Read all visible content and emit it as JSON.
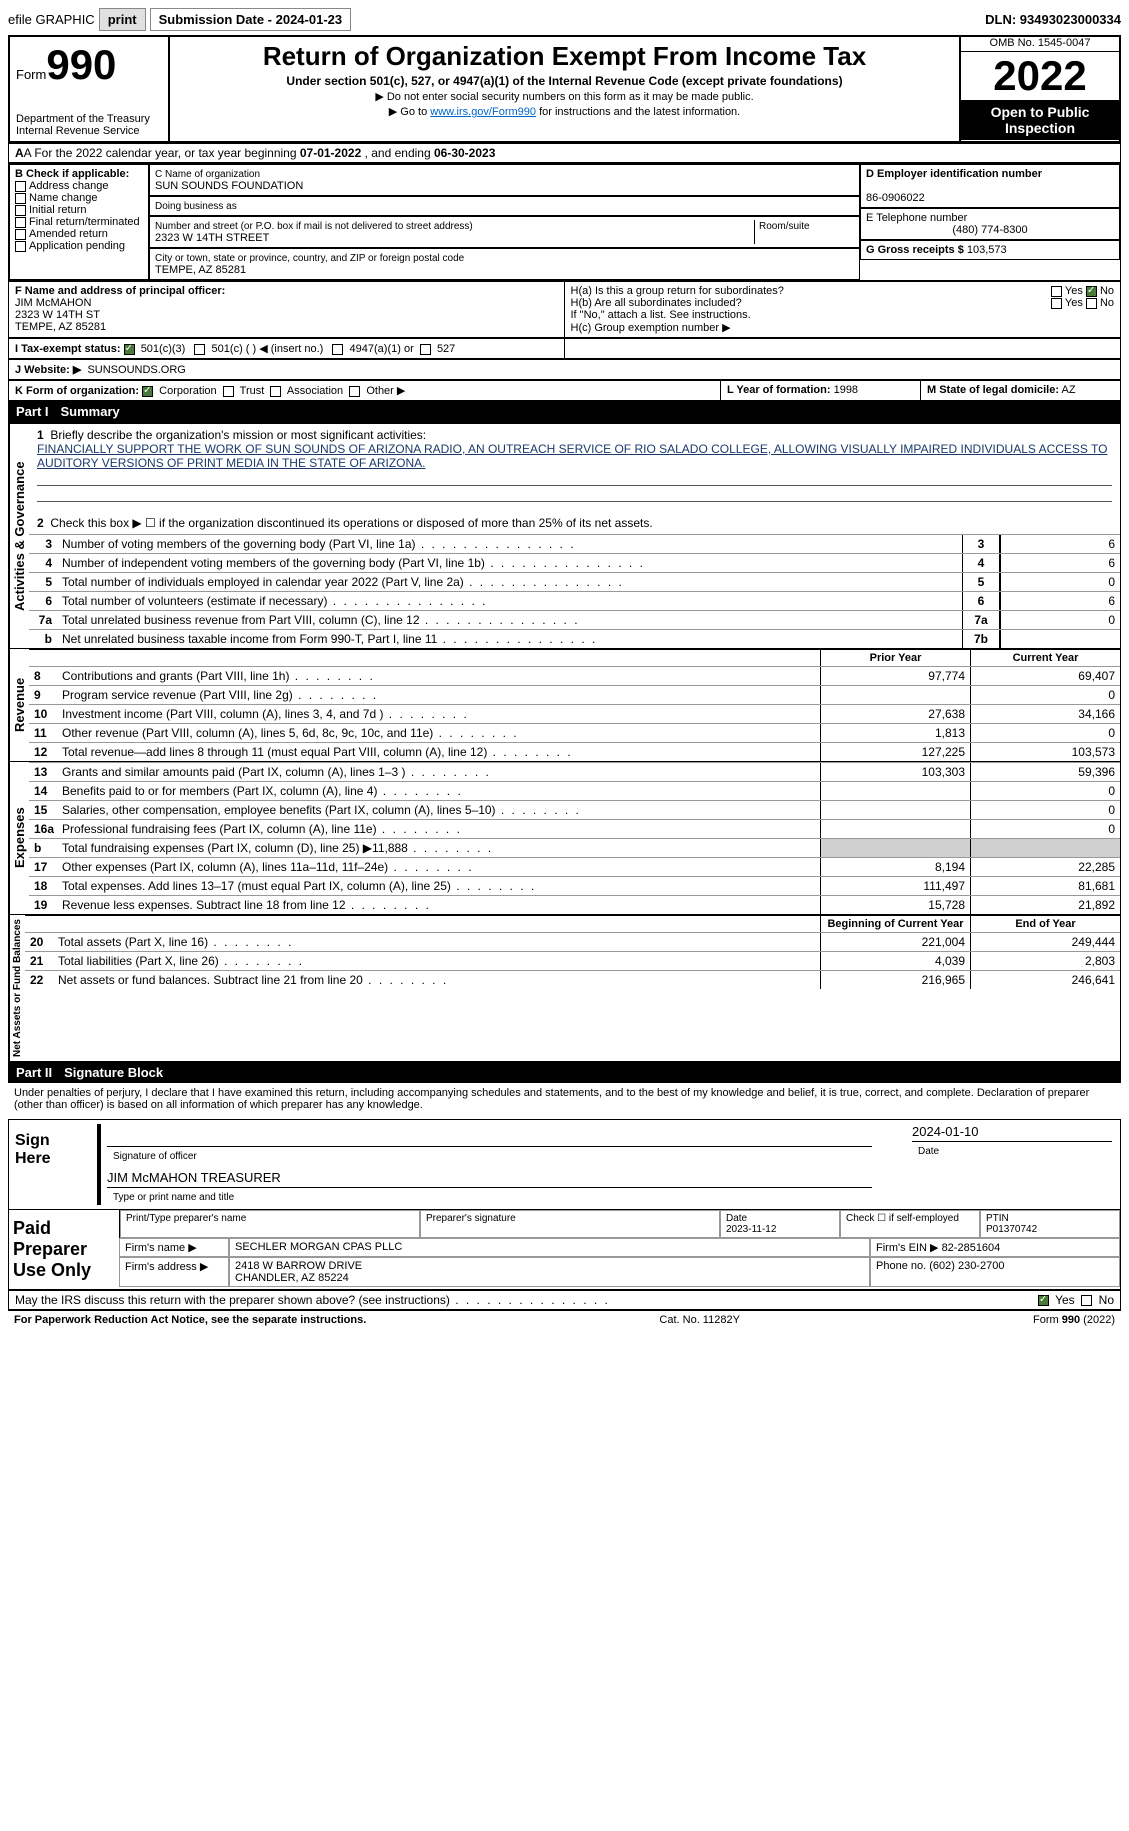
{
  "topbar": {
    "efile": "efile GRAPHIC",
    "print": "print",
    "submission": "Submission Date - 2024-01-23",
    "dln": "DLN: 93493023000334"
  },
  "header": {
    "form_label": "Form",
    "form_num": "990",
    "dept": "Department of the Treasury\nInternal Revenue Service",
    "title": "Return of Organization Exempt From Income Tax",
    "subtitle": "Under section 501(c), 527, or 4947(a)(1) of the Internal Revenue Code (except private foundations)",
    "note1": "▶ Do not enter social security numbers on this form as it may be made public.",
    "note2_pre": "▶ Go to ",
    "note2_link": "www.irs.gov/Form990",
    "note2_post": " for instructions and the latest information.",
    "omb": "OMB No. 1545-0047",
    "year": "2022",
    "open": "Open to Public Inspection"
  },
  "row_a": {
    "text_pre": "A For the 2022 calendar year, or tax year beginning ",
    "begin": "07-01-2022",
    "text_mid": " , and ending ",
    "end": "06-30-2023"
  },
  "section_b": {
    "label": "B Check if applicable:",
    "opts": [
      "Address change",
      "Name change",
      "Initial return",
      "Final return/terminated",
      "Amended return",
      "Application pending"
    ]
  },
  "section_c": {
    "name_lbl": "C Name of organization",
    "name": "SUN SOUNDS FOUNDATION",
    "dba_lbl": "Doing business as",
    "dba": "",
    "addr_lbl": "Number and street (or P.O. box if mail is not delivered to street address)",
    "room_lbl": "Room/suite",
    "addr": "2323 W 14TH STREET",
    "city_lbl": "City or town, state or province, country, and ZIP or foreign postal code",
    "city": "TEMPE, AZ  85281"
  },
  "section_d": {
    "label": "D Employer identification number",
    "ein": "86-0906022"
  },
  "section_e": {
    "label": "E Telephone number",
    "phone": "(480) 774-8300"
  },
  "section_g": {
    "label": "G Gross receipts $",
    "amount": "103,573"
  },
  "section_f": {
    "label": "F Name and address of principal officer:",
    "name": "JIM McMAHON",
    "addr1": "2323 W 14TH ST",
    "addr2": "TEMPE, AZ  85281"
  },
  "section_h": {
    "ha": "H(a)  Is this a group return for subordinates?",
    "hb": "H(b)  Are all subordinates included?",
    "hb_note": "If \"No,\" attach a list. See instructions.",
    "hc": "H(c)  Group exemption number ▶",
    "yes": "Yes",
    "no": "No"
  },
  "section_i": {
    "label": "I    Tax-exempt status:",
    "opt1": "501(c)(3)",
    "opt2": "501(c) (  ) ◀ (insert no.)",
    "opt3": "4947(a)(1) or",
    "opt4": "527"
  },
  "section_j": {
    "label": "J    Website: ▶",
    "site": "SUNSOUNDS.ORG"
  },
  "section_k": {
    "label": "K Form of organization:",
    "opts": [
      "Corporation",
      "Trust",
      "Association",
      "Other ▶"
    ]
  },
  "section_l": {
    "label": "L Year of formation:",
    "year": "1998"
  },
  "section_m": {
    "label": "M State of legal domicile:",
    "state": "AZ"
  },
  "part1": {
    "title": "Part I",
    "subtitle": "Summary",
    "side_activities": "Activities & Governance",
    "side_revenue": "Revenue",
    "side_expenses": "Expenses",
    "side_netassets": "Net Assets or Fund Balances",
    "line1_lbl": "Briefly describe the organization's mission or most significant activities:",
    "line1_txt": "FINANCIALLY SUPPORT THE WORK OF SUN SOUNDS OF ARIZONA RADIO, AN OUTREACH SERVICE OF RIO SALADO COLLEGE, ALLOWING VISUALLY IMPAIRED INDIVIDUALS ACCESS TO AUDITORY VERSIONS OF PRINT MEDIA IN THE STATE OF ARIZONA.",
    "line2": "Check this box ▶ ☐ if the organization discontinued its operations or disposed of more than 25% of its net assets.",
    "lines": [
      {
        "n": "3",
        "t": "Number of voting members of the governing body (Part VI, line 1a)",
        "b": "3",
        "v": "6"
      },
      {
        "n": "4",
        "t": "Number of independent voting members of the governing body (Part VI, line 1b)",
        "b": "4",
        "v": "6"
      },
      {
        "n": "5",
        "t": "Total number of individuals employed in calendar year 2022 (Part V, line 2a)",
        "b": "5",
        "v": "0"
      },
      {
        "n": "6",
        "t": "Total number of volunteers (estimate if necessary)",
        "b": "6",
        "v": "6"
      },
      {
        "n": "7a",
        "t": "Total unrelated business revenue from Part VIII, column (C), line 12",
        "b": "7a",
        "v": "0"
      },
      {
        "n": "b",
        "t": "Net unrelated business taxable income from Form 990-T, Part I, line 11",
        "b": "7b",
        "v": ""
      }
    ],
    "col_prior": "Prior Year",
    "col_current": "Current Year",
    "revenue": [
      {
        "n": "8",
        "t": "Contributions and grants (Part VIII, line 1h)",
        "p": "97,774",
        "c": "69,407"
      },
      {
        "n": "9",
        "t": "Program service revenue (Part VIII, line 2g)",
        "p": "",
        "c": "0"
      },
      {
        "n": "10",
        "t": "Investment income (Part VIII, column (A), lines 3, 4, and 7d )",
        "p": "27,638",
        "c": "34,166"
      },
      {
        "n": "11",
        "t": "Other revenue (Part VIII, column (A), lines 5, 6d, 8c, 9c, 10c, and 11e)",
        "p": "1,813",
        "c": "0"
      },
      {
        "n": "12",
        "t": "Total revenue—add lines 8 through 11 (must equal Part VIII, column (A), line 12)",
        "p": "127,225",
        "c": "103,573"
      }
    ],
    "expenses": [
      {
        "n": "13",
        "t": "Grants and similar amounts paid (Part IX, column (A), lines 1–3 )",
        "p": "103,303",
        "c": "59,396"
      },
      {
        "n": "14",
        "t": "Benefits paid to or for members (Part IX, column (A), line 4)",
        "p": "",
        "c": "0"
      },
      {
        "n": "15",
        "t": "Salaries, other compensation, employee benefits (Part IX, column (A), lines 5–10)",
        "p": "",
        "c": "0"
      },
      {
        "n": "16a",
        "t": "Professional fundraising fees (Part IX, column (A), line 11e)",
        "p": "",
        "c": "0"
      },
      {
        "n": "b",
        "t": "Total fundraising expenses (Part IX, column (D), line 25) ▶11,888",
        "p": "grey",
        "c": "grey"
      },
      {
        "n": "17",
        "t": "Other expenses (Part IX, column (A), lines 11a–11d, 11f–24e)",
        "p": "8,194",
        "c": "22,285"
      },
      {
        "n": "18",
        "t": "Total expenses. Add lines 13–17 (must equal Part IX, column (A), line 25)",
        "p": "111,497",
        "c": "81,681"
      },
      {
        "n": "19",
        "t": "Revenue less expenses. Subtract line 18 from line 12",
        "p": "15,728",
        "c": "21,892"
      }
    ],
    "col_begin": "Beginning of Current Year",
    "col_end": "End of Year",
    "netassets": [
      {
        "n": "20",
        "t": "Total assets (Part X, line 16)",
        "p": "221,004",
        "c": "249,444"
      },
      {
        "n": "21",
        "t": "Total liabilities (Part X, line 26)",
        "p": "4,039",
        "c": "2,803"
      },
      {
        "n": "22",
        "t": "Net assets or fund balances. Subtract line 21 from line 20",
        "p": "216,965",
        "c": "246,641"
      }
    ]
  },
  "part2": {
    "title": "Part II",
    "subtitle": "Signature Block",
    "declaration": "Under penalties of perjury, I declare that I have examined this return, including accompanying schedules and statements, and to the best of my knowledge and belief, it is true, correct, and complete. Declaration of preparer (other than officer) is based on all information of which preparer has any knowledge.",
    "sign_here": "Sign Here",
    "sig_officer": "Signature of officer",
    "sig_date_lbl": "Date",
    "sig_date": "2024-01-10",
    "officer_name": "JIM McMAHON  TREASURER",
    "type_name": "Type or print name and title",
    "paid_prep": "Paid Preparer Use Only",
    "prep_name_lbl": "Print/Type preparer's name",
    "prep_sig_lbl": "Preparer's signature",
    "prep_date_lbl": "Date",
    "prep_date": "2023-11-12",
    "prep_check_lbl": "Check ☐ if self-employed",
    "ptin_lbl": "PTIN",
    "ptin": "P01370742",
    "firm_name_lbl": "Firm's name    ▶",
    "firm_name": "SECHLER MORGAN CPAS PLLC",
    "firm_ein_lbl": "Firm's EIN ▶",
    "firm_ein": "82-2851604",
    "firm_addr_lbl": "Firm's address ▶",
    "firm_addr": "2418 W BARROW DRIVE",
    "firm_city": "CHANDLER, AZ  85224",
    "phone_lbl": "Phone no.",
    "phone": "(602) 230-2700",
    "discuss": "May the IRS discuss this return with the preparer shown above? (see instructions)",
    "yes": "Yes",
    "no": "No"
  },
  "footer": {
    "paperwork": "For Paperwork Reduction Act Notice, see the separate instructions.",
    "cat": "Cat. No. 11282Y",
    "form": "Form 990 (2022)"
  }
}
